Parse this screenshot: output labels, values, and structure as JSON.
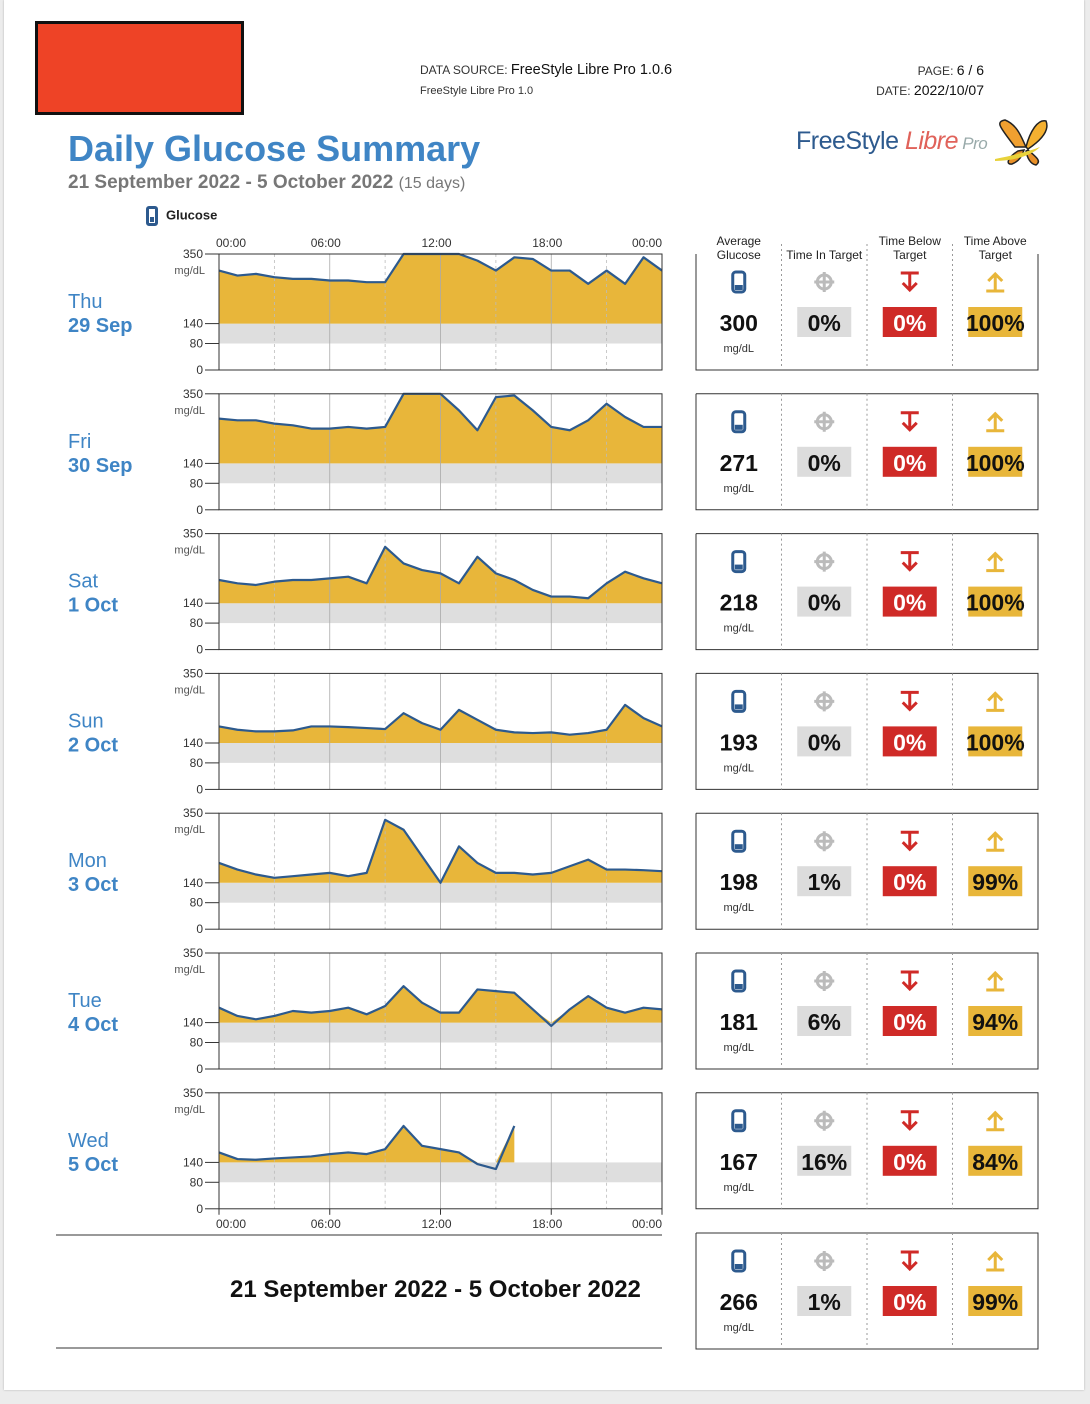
{
  "header": {
    "data_source_label": "DATA SOURCE:",
    "data_source_value": "FreeStyle Libre Pro 1.0.6",
    "data_source_sub": "FreeStyle Libre Pro 1.0",
    "page_label": "PAGE:",
    "page_value": "6 / 6",
    "date_label": "DATE:",
    "date_value": "2022/10/07"
  },
  "title": "Daily Glucose Summary",
  "subtitle": "21 September 2022 - 5 October 2022",
  "subtitle_days": "(15 days)",
  "logo": {
    "text_a": "FreeStyle ",
    "text_b": "Libre",
    "text_c": " Pro"
  },
  "legend": {
    "label": "Glucose"
  },
  "colors": {
    "fill": "#e8b63a",
    "line": "#2d5a8e",
    "target_band": "#dedede",
    "below": "#cf2a27",
    "above": "#e8b63a",
    "title": "#3f85c5"
  },
  "stats_headers": [
    "Average Glucose",
    "Time In Target",
    "Time Below Target",
    "Time Above Target"
  ],
  "stats_unit": "mg/dL",
  "chart_data": {
    "type": "area",
    "x_ticks": [
      "00:00",
      "06:00",
      "12:00",
      "18:00",
      "00:00"
    ],
    "y_ticks": [
      350,
      140,
      80,
      0
    ],
    "y_unit": "mg/dL",
    "ylim": [
      0,
      350
    ],
    "target_range": [
      80,
      140
    ],
    "days": [
      {
        "weekday": "Thu",
        "date": "29 Sep",
        "average": "300",
        "in_target": "0%",
        "below": "0%",
        "above": "100%",
        "x": [
          0,
          1,
          2,
          3,
          4,
          5,
          6,
          7,
          8,
          9,
          10,
          11,
          12,
          13,
          14,
          15,
          16,
          17,
          18,
          19,
          20,
          21,
          22,
          23,
          24
        ],
        "y": [
          300,
          285,
          290,
          280,
          275,
          275,
          270,
          270,
          265,
          265,
          350,
          350,
          350,
          350,
          330,
          300,
          340,
          335,
          300,
          300,
          260,
          300,
          260,
          340,
          300
        ]
      },
      {
        "weekday": "Fri",
        "date": "30 Sep",
        "average": "271",
        "in_target": "0%",
        "below": "0%",
        "above": "100%",
        "x": [
          0,
          1,
          2,
          3,
          4,
          5,
          6,
          7,
          8,
          9,
          10,
          11,
          12,
          13,
          14,
          15,
          16,
          17,
          18,
          19,
          20,
          21,
          22,
          23,
          24
        ],
        "y": [
          275,
          270,
          270,
          260,
          255,
          245,
          245,
          250,
          245,
          250,
          350,
          350,
          350,
          300,
          240,
          340,
          345,
          300,
          250,
          240,
          270,
          320,
          280,
          250,
          250
        ]
      },
      {
        "weekday": "Sat",
        "date": "1 Oct",
        "average": "218",
        "in_target": "0%",
        "below": "0%",
        "above": "100%",
        "x": [
          0,
          1,
          2,
          3,
          4,
          5,
          6,
          7,
          8,
          9,
          10,
          11,
          12,
          13,
          14,
          15,
          16,
          17,
          18,
          19,
          20,
          21,
          22,
          23,
          24
        ],
        "y": [
          210,
          200,
          195,
          205,
          210,
          210,
          215,
          220,
          200,
          310,
          260,
          240,
          230,
          200,
          280,
          230,
          210,
          180,
          160,
          160,
          155,
          200,
          235,
          215,
          200
        ]
      },
      {
        "weekday": "Sun",
        "date": "2 Oct",
        "average": "193",
        "in_target": "0%",
        "below": "0%",
        "above": "100%",
        "x": [
          0,
          1,
          2,
          3,
          4,
          5,
          6,
          7,
          8,
          9,
          10,
          11,
          12,
          13,
          14,
          15,
          16,
          17,
          18,
          19,
          20,
          21,
          22,
          23,
          24
        ],
        "y": [
          190,
          180,
          175,
          175,
          178,
          190,
          190,
          188,
          185,
          182,
          230,
          200,
          180,
          240,
          210,
          180,
          172,
          170,
          172,
          165,
          170,
          180,
          255,
          215,
          190
        ]
      },
      {
        "weekday": "Mon",
        "date": "3 Oct",
        "average": "198",
        "in_target": "1%",
        "below": "0%",
        "above": "99%",
        "x": [
          0,
          1,
          2,
          3,
          4,
          5,
          6,
          7,
          8,
          9,
          10,
          11,
          12,
          13,
          14,
          15,
          16,
          17,
          18,
          19,
          20,
          21,
          22,
          23,
          24
        ],
        "y": [
          200,
          180,
          165,
          155,
          160,
          165,
          170,
          160,
          170,
          330,
          300,
          220,
          140,
          250,
          200,
          170,
          170,
          165,
          170,
          190,
          210,
          180,
          180,
          178,
          175
        ]
      },
      {
        "weekday": "Tue",
        "date": "4 Oct",
        "average": "181",
        "in_target": "6%",
        "below": "0%",
        "above": "94%",
        "x": [
          0,
          1,
          2,
          3,
          4,
          5,
          6,
          7,
          8,
          9,
          10,
          11,
          12,
          13,
          14,
          15,
          16,
          17,
          18,
          19,
          20,
          21,
          22,
          23,
          24
        ],
        "y": [
          185,
          160,
          150,
          160,
          175,
          170,
          175,
          185,
          165,
          190,
          250,
          200,
          170,
          170,
          240,
          235,
          230,
          180,
          130,
          180,
          220,
          185,
          170,
          185,
          180
        ]
      },
      {
        "weekday": "Wed",
        "date": "5 Oct",
        "average": "167",
        "in_target": "16%",
        "below": "0%",
        "above": "84%",
        "x": [
          0,
          1,
          2,
          3,
          4,
          5,
          6,
          7,
          8,
          9,
          10,
          11,
          12,
          13,
          14,
          15,
          16
        ],
        "y": [
          170,
          150,
          148,
          152,
          155,
          158,
          165,
          170,
          165,
          180,
          250,
          190,
          180,
          170,
          135,
          120,
          250
        ]
      }
    ]
  },
  "summary": {
    "range_label": "21 September 2022 - 5 October 2022",
    "average": "266",
    "in_target": "1%",
    "below": "0%",
    "above": "99%"
  }
}
